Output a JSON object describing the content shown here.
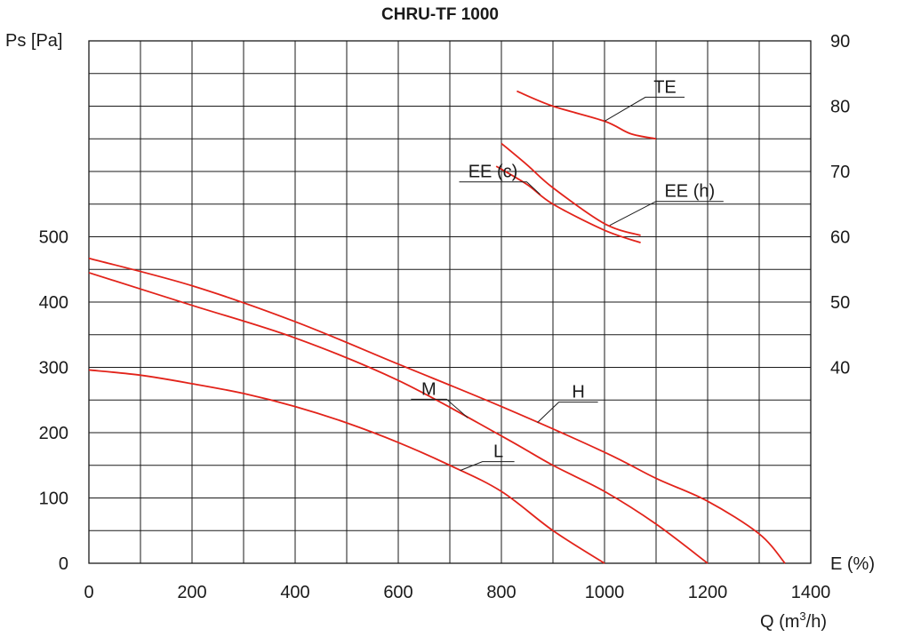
{
  "chart_data": {
    "type": "line",
    "title": "CHRU-TF 1000",
    "xlabel_prefix": "Q (m",
    "xlabel_sup": "3",
    "xlabel_suffix": "/h)",
    "ylabel": "Ps [Pa]",
    "y2label": "E (%)",
    "xlim": [
      0,
      1400
    ],
    "ylim": [
      0,
      800
    ],
    "y2lim": [
      10,
      90
    ],
    "x_ticks": [
      0,
      200,
      400,
      600,
      800,
      1000,
      1200,
      1400
    ],
    "y_ticks": [
      0,
      100,
      200,
      300,
      400,
      500
    ],
    "y2_ticks": [
      40,
      50,
      60,
      70,
      80,
      90
    ],
    "grid": true,
    "series": [
      {
        "name": "H",
        "axis": "left",
        "x": [
          0,
          200,
          400,
          600,
          800,
          1000,
          1100,
          1200,
          1300,
          1350
        ],
        "y": [
          467,
          425,
          370,
          305,
          240,
          170,
          130,
          95,
          45,
          0
        ]
      },
      {
        "name": "M",
        "axis": "left",
        "x": [
          0,
          200,
          400,
          600,
          800,
          900,
          1000,
          1100,
          1200
        ],
        "y": [
          445,
          395,
          345,
          280,
          195,
          150,
          110,
          60,
          0
        ]
      },
      {
        "name": "L",
        "axis": "left",
        "x": [
          0,
          100,
          200,
          300,
          400,
          500,
          600,
          700,
          800,
          900,
          1000
        ],
        "y": [
          296,
          288,
          275,
          260,
          240,
          215,
          185,
          150,
          110,
          50,
          0
        ]
      },
      {
        "name": "TE",
        "axis": "right",
        "x": [
          830,
          900,
          1000,
          1050,
          1100
        ],
        "y": [
          82.3,
          80,
          77.7,
          75.8,
          75
        ]
      },
      {
        "name": "EE (h)",
        "axis": "right",
        "x": [
          800,
          850,
          900,
          1000,
          1070
        ],
        "y": [
          74.3,
          71,
          67.5,
          62,
          60.2
        ]
      },
      {
        "name": "EE (c)",
        "axis": "right",
        "x": [
          790,
          850,
          900,
          1000,
          1070
        ],
        "y": [
          70.8,
          68,
          65,
          61,
          59.1
        ]
      }
    ],
    "curve_labels": [
      {
        "series": "TE",
        "text": "TE"
      },
      {
        "series": "EE (h)",
        "text": "EE (h)"
      },
      {
        "series": "EE (c)",
        "text": "EE (c)"
      },
      {
        "series": "H",
        "text": "H"
      },
      {
        "series": "M",
        "text": "M"
      },
      {
        "series": "L",
        "text": "L"
      }
    ],
    "curve_color": "#e2231a",
    "grid_color": "#1a1a1a"
  }
}
